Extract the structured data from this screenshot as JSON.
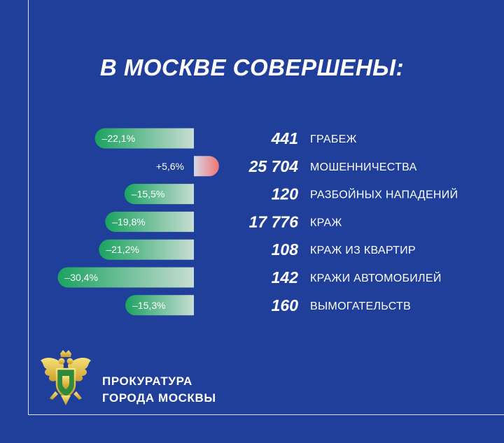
{
  "title": "В МОСКВЕ СОВЕРШЕНЫ:",
  "org": {
    "line1": "ПРОКУРАТУРА",
    "line2": "ГОРОДА МОСКВЫ"
  },
  "colors": {
    "background": "#1f3f9b",
    "decrease": "#1aa35f",
    "increase": "#f07474"
  },
  "chart_data": {
    "type": "bar",
    "categories": [
      "ГРАБЕЖ",
      "МОШЕННИЧЕСТВА",
      "РАЗБОЙНЫХ НАПАДЕНИЙ",
      "КРАЖ",
      "КРАЖ ИЗ КВАРТИР",
      "КРАЖИ АВТОМОБИЛЕЙ",
      "ВЫМОГАТЕЛЬСТВ"
    ],
    "counts": [
      "441",
      "25 704",
      "120",
      "17 776",
      "108",
      "142",
      "160"
    ],
    "change_labels": [
      "–22,1%",
      "+5,6%",
      "–15,5%",
      "–19,8%",
      "–21,2%",
      "–30,4%",
      "–15,3%"
    ],
    "values": [
      -22.1,
      5.6,
      -15.5,
      -19.8,
      -21.2,
      -30.4,
      -15.3
    ]
  }
}
